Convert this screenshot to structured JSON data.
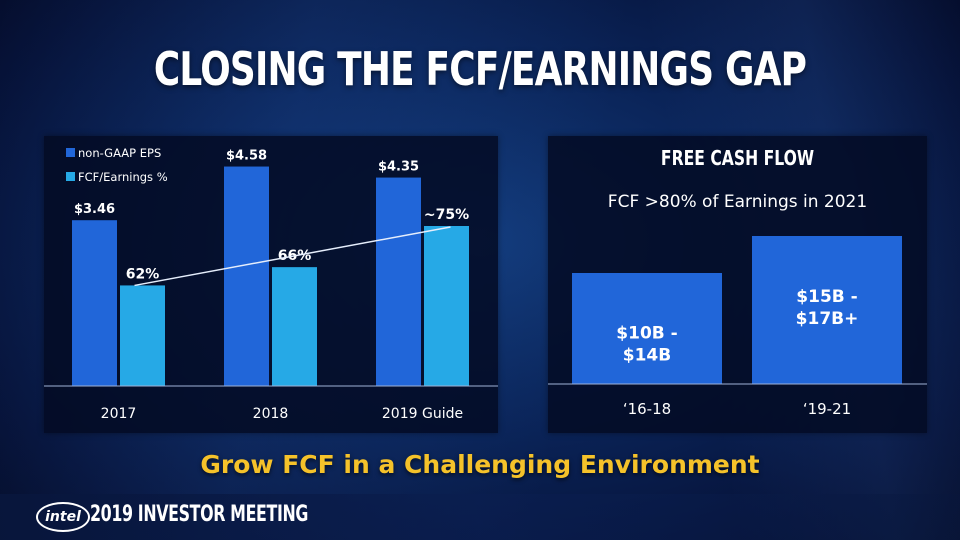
{
  "title": "CLOSING THE FCF/EARNINGS GAP",
  "chart_data": [
    {
      "type": "bar",
      "categories": [
        "2017",
        "2018",
        "2019 Guide"
      ],
      "series": [
        {
          "name": "non-GAAP EPS",
          "values": [
            3.46,
            4.58,
            4.35
          ],
          "labels": [
            "$3.46",
            "$4.58",
            "$4.35"
          ],
          "color": "#2166d9"
        },
        {
          "name": "FCF/Earnings %",
          "values": [
            62,
            66,
            75
          ],
          "labels": [
            "62%",
            "66%",
            "~75%"
          ],
          "color": "#26a9e6"
        }
      ],
      "trendline": true,
      "ylim": [
        0,
        4.8
      ],
      "legend": "top-left"
    },
    {
      "type": "bar",
      "title": "FREE CASH FLOW",
      "subtitle": "FCF >80% of Earnings in 2021",
      "categories": [
        "‘16-18",
        "‘19-21"
      ],
      "values": [
        12,
        16
      ],
      "value_labels": [
        [
          "$10B -",
          "$14B"
        ],
        [
          "$15B -",
          "$17B+"
        ]
      ],
      "color": "#2166d9",
      "ylim": [
        0,
        24
      ]
    }
  ],
  "tagline": "Grow FCF in a Challenging Environment",
  "footer": {
    "logo": "intel",
    "event": "2019 INVESTOR MEETING"
  }
}
